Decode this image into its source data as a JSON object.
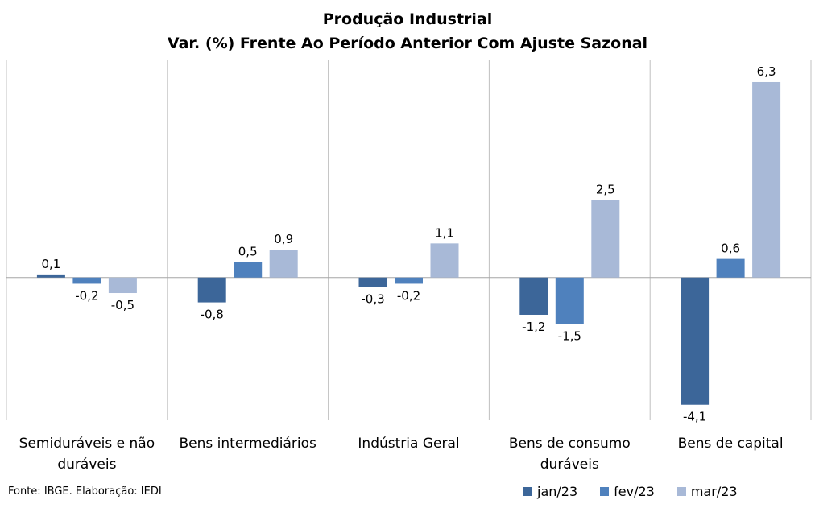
{
  "title": "Produção Industrial",
  "subtitle": "Var. (%) Frente Ao Período Anterior Com Ajuste Sazonal",
  "source": "Fonte: IBGE. Elaboração: IEDI",
  "chart_data": {
    "type": "bar",
    "categories": [
      [
        "Semiduráveis e não",
        "duráveis"
      ],
      [
        "Bens intermediários"
      ],
      [
        "Indústria Geral"
      ],
      [
        "Bens de consumo",
        "duráveis"
      ],
      [
        "Bens de capital"
      ]
    ],
    "series": [
      {
        "name": "jan/23",
        "color": "#3c6699",
        "values": [
          0.1,
          -0.8,
          -0.3,
          -1.2,
          -4.1
        ],
        "labels": [
          "0,1",
          "-0,8",
          "-0,3",
          "-1,2",
          "-4,1"
        ]
      },
      {
        "name": "fev/23",
        "color": "#4f81bd",
        "values": [
          -0.2,
          0.5,
          -0.2,
          -1.5,
          0.6
        ],
        "labels": [
          "-0,2",
          "0,5",
          "-0,2",
          "-1,5",
          "0,6"
        ]
      },
      {
        "name": "mar/23",
        "color": "#a8b9d7",
        "values": [
          -0.5,
          0.9,
          1.1,
          2.5,
          6.3
        ],
        "labels": [
          "-0,5",
          "0,9",
          "1,1",
          "2,5",
          "6,3"
        ]
      }
    ],
    "ylim": [
      -4.6,
      7.0
    ],
    "grid": false,
    "legend": "bottom-right"
  }
}
